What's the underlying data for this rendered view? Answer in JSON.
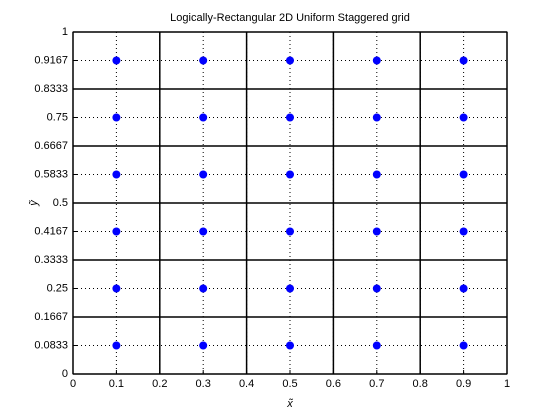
{
  "chart_data": {
    "type": "scatter",
    "title": "Logically-Rectangular 2D Uniform Staggered grid",
    "xlabel": "x̃",
    "ylabel": "ỹ",
    "xlim": [
      0,
      1
    ],
    "ylim": [
      0,
      1
    ],
    "xticks": [
      0,
      0.1,
      0.2,
      0.3,
      0.4,
      0.5,
      0.6,
      0.7,
      0.8,
      0.9,
      1
    ],
    "yticks": [
      0,
      0.0833,
      0.1667,
      0.25,
      0.3333,
      0.4167,
      0.5,
      0.5833,
      0.6667,
      0.75,
      0.8333,
      0.9167,
      1
    ],
    "grid": true,
    "cell_edges_x": [
      0,
      0.2,
      0.4,
      0.6,
      0.8,
      1
    ],
    "cell_edges_y": [
      0,
      0.1667,
      0.3333,
      0.5,
      0.6667,
      0.8333,
      1
    ],
    "color": "#0000ff",
    "x": [
      0.1,
      0.3,
      0.5,
      0.7,
      0.9,
      0.1,
      0.3,
      0.5,
      0.7,
      0.9,
      0.1,
      0.3,
      0.5,
      0.7,
      0.9,
      0.1,
      0.3,
      0.5,
      0.7,
      0.9,
      0.1,
      0.3,
      0.5,
      0.7,
      0.9,
      0.1,
      0.3,
      0.5,
      0.7,
      0.9
    ],
    "y": [
      0.0833,
      0.0833,
      0.0833,
      0.0833,
      0.0833,
      0.25,
      0.25,
      0.25,
      0.25,
      0.25,
      0.4167,
      0.4167,
      0.4167,
      0.4167,
      0.4167,
      0.5833,
      0.5833,
      0.5833,
      0.5833,
      0.5833,
      0.75,
      0.75,
      0.75,
      0.75,
      0.75,
      0.9167,
      0.9167,
      0.9167,
      0.9167,
      0.9167
    ]
  }
}
